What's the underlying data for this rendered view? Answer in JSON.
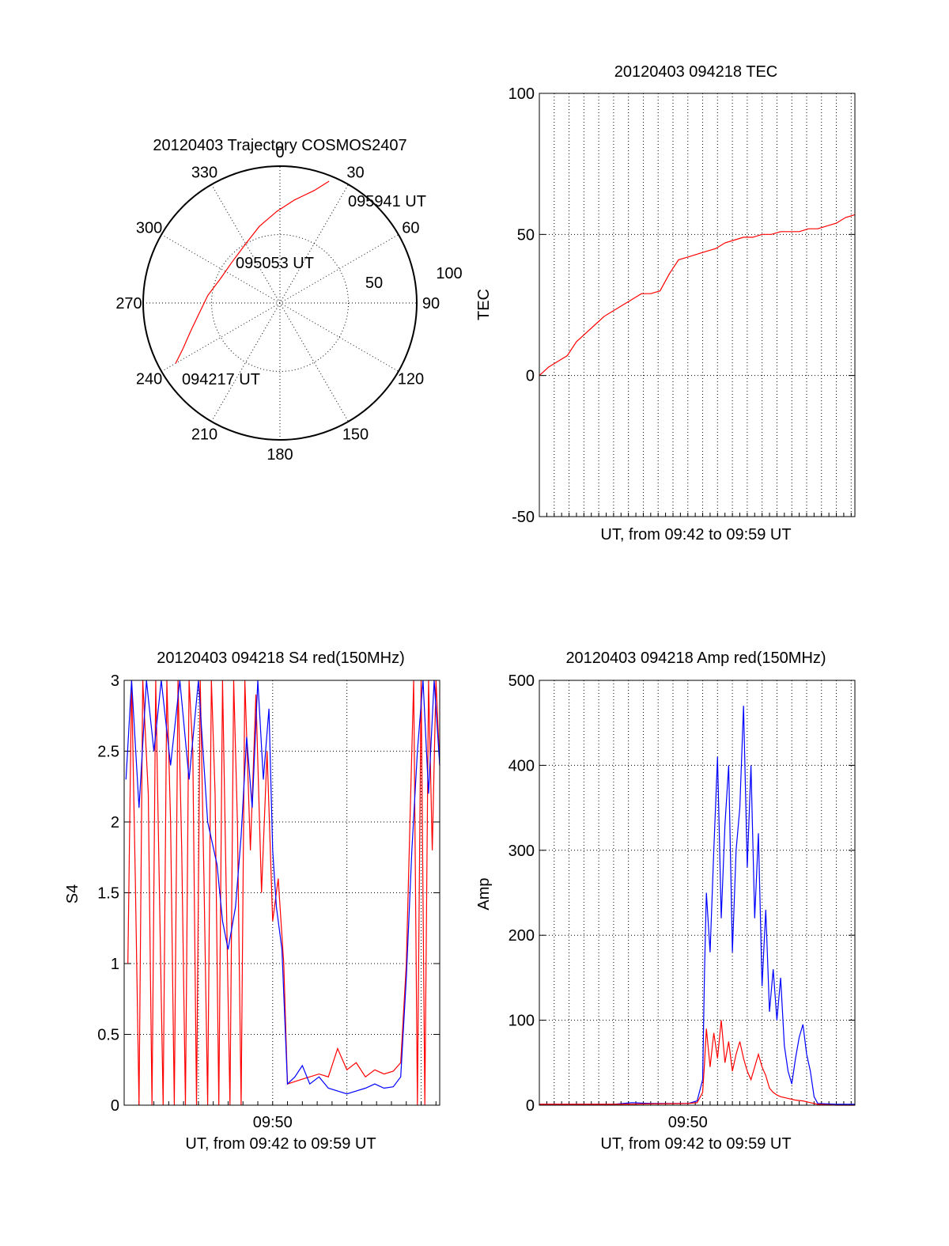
{
  "colors": {
    "red": "#ff0000",
    "blue": "#0000ff",
    "axis": "#000000"
  },
  "chart_data": [
    {
      "id": "trajectory",
      "type": "polar",
      "title": "20120403 Trajectory COSMOS2407",
      "angle_labels": [
        "0",
        "30",
        "60",
        "90",
        "120",
        "150",
        "180",
        "210",
        "240",
        "270",
        "300",
        "330"
      ],
      "radial_labels": [
        "50",
        "100"
      ],
      "rmax": 100,
      "annotations": [
        "095941 UT",
        "095053 UT",
        "094217 UT"
      ],
      "series": [
        {
          "color": "red",
          "points": [
            {
              "az": 240,
              "zen": 88
            },
            {
              "az": 245,
              "zen": 78
            },
            {
              "az": 252,
              "zen": 69
            },
            {
              "az": 262,
              "zen": 60
            },
            {
              "az": 276,
              "zen": 53
            },
            {
              "az": 292,
              "zen": 47
            },
            {
              "az": 310,
              "zen": 46
            },
            {
              "az": 330,
              "zen": 50
            },
            {
              "az": 345,
              "zen": 58
            },
            {
              "az": 358,
              "zen": 67
            },
            {
              "az": 8,
              "zen": 76
            },
            {
              "az": 17,
              "zen": 86
            },
            {
              "az": 22,
              "zen": 96
            }
          ]
        }
      ]
    },
    {
      "id": "tec",
      "type": "line",
      "title": "20120403 094218 TEC",
      "xlabel": "UT, from 09:42 to 09:59 UT",
      "ylabel": "TEC",
      "ylim": [
        -50,
        100
      ],
      "yticks": [
        "-50",
        "0",
        "50",
        "100"
      ],
      "xlim": [
        0,
        17
      ],
      "xgrid": [
        0.8,
        1.6,
        2.4,
        3.2,
        4.0,
        4.8,
        5.6,
        6.4,
        7.2,
        8.0,
        8.8,
        9.6,
        10.4,
        11.2,
        12.0,
        12.8,
        13.6,
        14.4,
        15.2,
        16.0,
        16.8
      ],
      "series": [
        {
          "color": "red",
          "points": [
            [
              0,
              0
            ],
            [
              0.5,
              3
            ],
            [
              1.0,
              5
            ],
            [
              1.5,
              7
            ],
            [
              2.0,
              12
            ],
            [
              2.5,
              15
            ],
            [
              3.0,
              18
            ],
            [
              3.5,
              21
            ],
            [
              4.0,
              23
            ],
            [
              4.5,
              25
            ],
            [
              5.0,
              27
            ],
            [
              5.5,
              29
            ],
            [
              6.0,
              29
            ],
            [
              6.5,
              30
            ],
            [
              7.0,
              36
            ],
            [
              7.5,
              41
            ],
            [
              8.0,
              42
            ],
            [
              8.5,
              43
            ],
            [
              9.0,
              44
            ],
            [
              9.5,
              45
            ],
            [
              10.0,
              47
            ],
            [
              10.5,
              48
            ],
            [
              11.0,
              49
            ],
            [
              11.5,
              49
            ],
            [
              12.0,
              50
            ],
            [
              12.5,
              50
            ],
            [
              13.0,
              51
            ],
            [
              13.5,
              51
            ],
            [
              14.0,
              51
            ],
            [
              14.5,
              52
            ],
            [
              15.0,
              52
            ],
            [
              15.5,
              53
            ],
            [
              16.0,
              54
            ],
            [
              16.5,
              56
            ],
            [
              17.0,
              57
            ]
          ]
        }
      ]
    },
    {
      "id": "s4",
      "type": "line",
      "title": "20120403 094218 S4 red(150MHz)",
      "xlabel": "UT, from 09:42 to 09:59 UT",
      "ylabel": "S4",
      "ylim": [
        0,
        3
      ],
      "yticks": [
        "0",
        "0.5",
        "1",
        "1.5",
        "2",
        "2.5",
        "3"
      ],
      "xlim": [
        0,
        17
      ],
      "xticks": [
        {
          "x": 8.0,
          "label": "09:50"
        }
      ],
      "xgrid": [
        4.0,
        8.0,
        12.0,
        16.0
      ],
      "series": [
        {
          "color": "red",
          "points": [
            [
              0.2,
              1.0
            ],
            [
              0.4,
              3.0
            ],
            [
              0.6,
              1.6
            ],
            [
              0.8,
              0.0
            ],
            [
              1.0,
              3.0
            ],
            [
              1.3,
              2.2
            ],
            [
              1.5,
              0.0
            ],
            [
              1.7,
              3.0
            ],
            [
              1.9,
              1.5
            ],
            [
              2.1,
              0.0
            ],
            [
              2.3,
              3.0
            ],
            [
              2.5,
              2.0
            ],
            [
              2.7,
              0.0
            ],
            [
              2.9,
              3.0
            ],
            [
              3.1,
              1.8
            ],
            [
              3.3,
              0.0
            ],
            [
              3.5,
              3.0
            ],
            [
              3.7,
              2.5
            ],
            [
              3.9,
              0.0
            ],
            [
              4.1,
              3.0
            ],
            [
              4.3,
              1.6
            ],
            [
              4.5,
              0.0
            ],
            [
              4.7,
              3.0
            ],
            [
              4.9,
              2.2
            ],
            [
              5.1,
              0.0
            ],
            [
              5.3,
              3.0
            ],
            [
              5.5,
              1.5
            ],
            [
              5.7,
              0.0
            ],
            [
              5.9,
              3.0
            ],
            [
              6.1,
              2.0
            ],
            [
              6.3,
              0.0
            ],
            [
              6.5,
              3.0
            ],
            [
              6.8,
              1.8
            ],
            [
              7.1,
              2.9
            ],
            [
              7.4,
              1.5
            ],
            [
              7.7,
              2.5
            ],
            [
              8.0,
              1.3
            ],
            [
              8.3,
              1.6
            ],
            [
              8.6,
              1.0
            ],
            [
              8.8,
              0.15
            ],
            [
              9.5,
              0.18
            ],
            [
              10.5,
              0.22
            ],
            [
              11.0,
              0.2
            ],
            [
              11.5,
              0.4
            ],
            [
              12.0,
              0.25
            ],
            [
              12.5,
              0.3
            ],
            [
              13.0,
              0.2
            ],
            [
              13.5,
              0.25
            ],
            [
              14.0,
              0.22
            ],
            [
              14.5,
              0.24
            ],
            [
              14.9,
              0.3
            ],
            [
              15.2,
              1.0
            ],
            [
              15.4,
              2.0
            ],
            [
              15.6,
              3.0
            ],
            [
              15.8,
              0.0
            ],
            [
              16.0,
              3.0
            ],
            [
              16.2,
              0.0
            ],
            [
              16.4,
              3.0
            ],
            [
              16.6,
              1.8
            ],
            [
              16.8,
              3.0
            ],
            [
              17.0,
              2.4
            ]
          ]
        },
        {
          "color": "blue",
          "points": [
            [
              0.1,
              2.3
            ],
            [
              0.4,
              3.0
            ],
            [
              0.8,
              2.1
            ],
            [
              1.2,
              3.0
            ],
            [
              1.6,
              2.5
            ],
            [
              2.0,
              3.0
            ],
            [
              2.5,
              2.4
            ],
            [
              3.0,
              3.0
            ],
            [
              3.5,
              2.3
            ],
            [
              4.0,
              3.0
            ],
            [
              4.5,
              2.0
            ],
            [
              5.0,
              1.7
            ],
            [
              5.3,
              1.3
            ],
            [
              5.6,
              1.1
            ],
            [
              6.0,
              1.4
            ],
            [
              6.3,
              1.9
            ],
            [
              6.6,
              2.6
            ],
            [
              6.9,
              2.1
            ],
            [
              7.2,
              3.0
            ],
            [
              7.5,
              2.3
            ],
            [
              7.8,
              2.8
            ],
            [
              8.0,
              1.8
            ],
            [
              8.2,
              1.4
            ],
            [
              8.5,
              1.1
            ],
            [
              8.8,
              0.15
            ],
            [
              9.2,
              0.2
            ],
            [
              9.6,
              0.28
            ],
            [
              10.0,
              0.15
            ],
            [
              10.5,
              0.2
            ],
            [
              11.0,
              0.12
            ],
            [
              11.5,
              0.1
            ],
            [
              12.0,
              0.08
            ],
            [
              12.5,
              0.1
            ],
            [
              13.0,
              0.12
            ],
            [
              13.5,
              0.15
            ],
            [
              14.0,
              0.12
            ],
            [
              14.5,
              0.13
            ],
            [
              14.9,
              0.2
            ],
            [
              15.2,
              0.9
            ],
            [
              15.5,
              1.8
            ],
            [
              15.8,
              2.5
            ],
            [
              16.1,
              3.0
            ],
            [
              16.4,
              2.2
            ],
            [
              16.7,
              3.0
            ],
            [
              17.0,
              2.4
            ]
          ]
        }
      ]
    },
    {
      "id": "amp",
      "type": "line",
      "title": "20120403 094218 Amp red(150MHz)",
      "xlabel": "UT, from 09:42 to 09:59 UT",
      "ylabel": "Amp",
      "ylim": [
        0,
        500
      ],
      "yticks": [
        "0",
        "100",
        "200",
        "300",
        "400",
        "500"
      ],
      "xlim": [
        0,
        17
      ],
      "xticks": [
        {
          "x": 8.0,
          "label": "09:50"
        }
      ],
      "xgrid": [
        0.8,
        1.6,
        2.4,
        3.2,
        4.0,
        4.8,
        5.6,
        6.4,
        7.2,
        8.0,
        8.8,
        9.6,
        10.4,
        11.2,
        12.0,
        12.8,
        13.6,
        14.4,
        15.2,
        16.0,
        16.8
      ],
      "series": [
        {
          "color": "blue",
          "points": [
            [
              0,
              1
            ],
            [
              4.0,
              1
            ],
            [
              5.0,
              3
            ],
            [
              6.0,
              2
            ],
            [
              7.0,
              2
            ],
            [
              8.0,
              2
            ],
            [
              8.5,
              5
            ],
            [
              8.8,
              30
            ],
            [
              8.9,
              160
            ],
            [
              9.0,
              250
            ],
            [
              9.2,
              180
            ],
            [
              9.4,
              300
            ],
            [
              9.6,
              410
            ],
            [
              9.8,
              220
            ],
            [
              10.0,
              330
            ],
            [
              10.2,
              400
            ],
            [
              10.4,
              180
            ],
            [
              10.6,
              300
            ],
            [
              10.8,
              350
            ],
            [
              11.0,
              470
            ],
            [
              11.2,
              280
            ],
            [
              11.4,
              400
            ],
            [
              11.6,
              220
            ],
            [
              11.8,
              320
            ],
            [
              12.0,
              140
            ],
            [
              12.2,
              230
            ],
            [
              12.4,
              110
            ],
            [
              12.6,
              160
            ],
            [
              12.8,
              100
            ],
            [
              13.0,
              150
            ],
            [
              13.2,
              70
            ],
            [
              13.4,
              40
            ],
            [
              13.6,
              25
            ],
            [
              13.8,
              55
            ],
            [
              14.0,
              80
            ],
            [
              14.2,
              95
            ],
            [
              14.4,
              60
            ],
            [
              14.6,
              40
            ],
            [
              14.8,
              10
            ],
            [
              15.0,
              2
            ],
            [
              16.0,
              1
            ],
            [
              17.0,
              1
            ]
          ]
        },
        {
          "color": "red",
          "points": [
            [
              0,
              1
            ],
            [
              4.0,
              1
            ],
            [
              8.0,
              2
            ],
            [
              8.5,
              3
            ],
            [
              8.8,
              15
            ],
            [
              8.9,
              50
            ],
            [
              9.0,
              90
            ],
            [
              9.2,
              45
            ],
            [
              9.4,
              85
            ],
            [
              9.6,
              55
            ],
            [
              9.8,
              100
            ],
            [
              10.0,
              50
            ],
            [
              10.2,
              75
            ],
            [
              10.4,
              40
            ],
            [
              10.6,
              60
            ],
            [
              10.8,
              75
            ],
            [
              11.0,
              55
            ],
            [
              11.2,
              40
            ],
            [
              11.4,
              30
            ],
            [
              11.6,
              45
            ],
            [
              11.8,
              60
            ],
            [
              12.0,
              45
            ],
            [
              12.2,
              35
            ],
            [
              12.4,
              20
            ],
            [
              12.6,
              15
            ],
            [
              12.8,
              12
            ],
            [
              13.0,
              10
            ],
            [
              13.4,
              8
            ],
            [
              13.8,
              6
            ],
            [
              14.2,
              5
            ],
            [
              14.6,
              3
            ],
            [
              15.0,
              1
            ],
            [
              16.0,
              0
            ],
            [
              17.0,
              0
            ]
          ]
        }
      ]
    }
  ]
}
